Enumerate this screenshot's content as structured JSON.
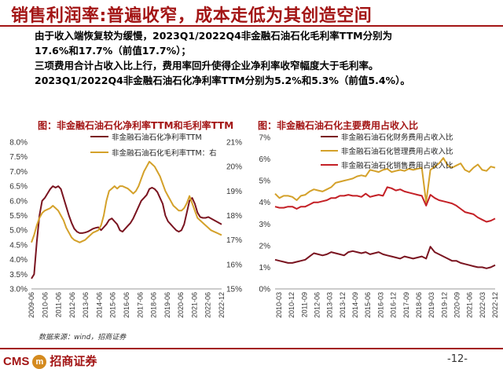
{
  "header": {
    "title": "销售利润率:普遍收窄，成本走低为其创造空间",
    "para1_line1": "由于收入端恢复较为缓慢，2023Q1/2022Q4非金融石油石化毛利率TTM分别为",
    "para1_line2": "17.6%和17.7%（前值17.7%）；",
    "para2_line1": "三项费用合计占收入比上行，费用率回升使得企业净利率收窄幅度大于毛利率。",
    "para2_line2": "2023Q1/2022Q4非金融石油石化净利率TTM分别为5.2%和5.3%（前值5.4%）。"
  },
  "footer": {
    "source": "数据来源：wind，招商证券",
    "logo_text": "CMS",
    "logo_mark": "m",
    "logo_cn": "招商证券",
    "page_number": "-12-"
  },
  "colors": {
    "dark_red": "#7a1420",
    "gold": "#d4a12a",
    "red": "#c42026",
    "accent": "#a31515"
  },
  "chart_data": [
    {
      "type": "line",
      "title": "图：非金融石油石化净利率TTM和毛利率TTM",
      "x_tick_labels": [
        "2009-06",
        "2010-06",
        "2011-06",
        "2012-06",
        "2013-06",
        "2014-06",
        "2015-06",
        "2016-06",
        "2017-06",
        "2018-06",
        "2019-06",
        "2020-06",
        "2021-06",
        "2022-06",
        "2022-12"
      ],
      "ylim_left": [
        3.0,
        8.0
      ],
      "y_ticks_left": [
        "3.0%",
        "3.5%",
        "4.0%",
        "4.5%",
        "5.0%",
        "5.5%",
        "6.0%",
        "6.5%",
        "7.0%",
        "7.5%",
        "8.0%"
      ],
      "ylim_right": [
        15,
        21
      ],
      "y_ticks_right": [
        "15%",
        "16%",
        "17%",
        "18%",
        "19%",
        "20%",
        "21%"
      ],
      "series": [
        {
          "name": "非金融石油石化净利率TTM",
          "axis": "left",
          "color": "#7a1420",
          "values": [
            3.35,
            3.5,
            4.6,
            5.5,
            6.0,
            6.1,
            6.25,
            6.4,
            6.5,
            6.45,
            6.5,
            6.4,
            6.1,
            5.8,
            5.5,
            5.25,
            5.05,
            4.95,
            4.9,
            4.9,
            4.92,
            4.95,
            5.0,
            5.05,
            5.08,
            5.1,
            5.0,
            5.1,
            5.2,
            5.35,
            5.4,
            5.3,
            5.2,
            5.0,
            4.95,
            5.05,
            5.15,
            5.25,
            5.4,
            5.6,
            5.8,
            6.0,
            6.1,
            6.2,
            6.4,
            6.45,
            6.4,
            6.3,
            6.1,
            5.9,
            5.5,
            5.3,
            5.2,
            5.1,
            5.0,
            4.95,
            5.0,
            5.2,
            5.6,
            6.0,
            6.1,
            5.9,
            5.6,
            5.45,
            5.42,
            5.42,
            5.45,
            5.4,
            5.35,
            5.3,
            5.25,
            5.2
          ]
        },
        {
          "name": "非金融石油石化毛利率TTM：右",
          "axis": "right",
          "color": "#d4a12a",
          "values": [
            16.9,
            17.2,
            17.6,
            17.9,
            18.1,
            18.2,
            18.25,
            18.3,
            18.4,
            18.3,
            18.2,
            18.0,
            17.8,
            17.5,
            17.3,
            17.1,
            17.0,
            16.95,
            16.9,
            16.95,
            17.0,
            17.1,
            17.2,
            17.3,
            17.35,
            17.4,
            17.6,
            18.0,
            18.6,
            19.0,
            19.1,
            19.2,
            19.1,
            19.2,
            19.2,
            19.15,
            19.1,
            19.0,
            18.9,
            19.0,
            19.2,
            19.5,
            19.8,
            20.0,
            20.2,
            20.1,
            20.0,
            19.8,
            19.6,
            19.3,
            19.0,
            18.8,
            18.6,
            18.4,
            18.3,
            18.2,
            18.2,
            18.3,
            18.5,
            18.8,
            18.5,
            18.2,
            17.9,
            17.8,
            17.7,
            17.6,
            17.5,
            17.4,
            17.35,
            17.3,
            17.25,
            17.2
          ]
        }
      ],
      "legend_position": "top-right"
    },
    {
      "type": "line",
      "title": "图：非金融石油石化主要费用占收入比",
      "x_tick_labels": [
        "2010-03",
        "2010-12",
        "2011-09",
        "2012-06",
        "2013-03",
        "2013-12",
        "2014-09",
        "2015-06",
        "2016-03",
        "2016-12",
        "2017-09",
        "2018-06",
        "2019-03",
        "2019-12",
        "2020-09",
        "2021-06",
        "2022-03",
        "2022-12"
      ],
      "ylim": [
        0,
        7
      ],
      "y_ticks": [
        "0%",
        "1%",
        "2%",
        "3%",
        "4%",
        "5%",
        "6%",
        "7%"
      ],
      "series": [
        {
          "name": "非金融石油石化财务费用占收入比",
          "color": "#7a1420",
          "values": [
            1.35,
            1.3,
            1.25,
            1.2,
            1.2,
            1.25,
            1.3,
            1.35,
            1.5,
            1.65,
            1.6,
            1.55,
            1.6,
            1.7,
            1.65,
            1.6,
            1.55,
            1.7,
            1.75,
            1.7,
            1.65,
            1.7,
            1.6,
            1.65,
            1.7,
            1.6,
            1.55,
            1.5,
            1.45,
            1.4,
            1.5,
            1.45,
            1.4,
            1.45,
            1.5,
            1.4,
            1.95,
            1.7,
            1.6,
            1.5,
            1.4,
            1.3,
            1.3,
            1.2,
            1.15,
            1.1,
            1.05,
            1.0,
            1.0,
            0.95,
            1.0,
            1.1
          ]
        },
        {
          "name": "非金融石油石化管理费用占收入比",
          "color": "#d4a12a",
          "values": [
            4.4,
            4.2,
            4.3,
            4.3,
            4.25,
            4.1,
            4.3,
            4.35,
            4.5,
            4.6,
            4.55,
            4.5,
            4.6,
            4.7,
            4.9,
            4.95,
            5.0,
            5.05,
            5.1,
            5.2,
            5.25,
            5.2,
            5.5,
            5.45,
            5.4,
            5.5,
            5.55,
            5.4,
            5.45,
            5.5,
            5.45,
            5.55,
            5.5,
            5.55,
            5.6,
            4.0,
            5.5,
            5.65,
            5.8,
            6.05,
            5.7,
            5.6,
            5.7,
            5.8,
            5.5,
            5.4,
            5.6,
            5.75,
            5.5,
            5.45,
            5.65,
            5.6
          ]
        },
        {
          "name": "非金融石油石化销售费用占收入比",
          "color": "#c42026",
          "values": [
            3.8,
            3.75,
            3.75,
            3.8,
            3.8,
            3.7,
            3.8,
            3.8,
            3.9,
            4.0,
            4.0,
            4.05,
            4.1,
            4.2,
            4.2,
            4.3,
            4.3,
            4.35,
            4.3,
            4.3,
            4.25,
            4.4,
            4.25,
            4.3,
            4.35,
            4.3,
            4.7,
            4.65,
            4.55,
            4.6,
            4.5,
            4.45,
            4.4,
            4.35,
            4.3,
            3.85,
            4.35,
            4.2,
            4.1,
            4.05,
            4.0,
            3.95,
            3.85,
            3.7,
            3.55,
            3.5,
            3.45,
            3.3,
            3.2,
            3.1,
            3.15,
            3.25
          ]
        }
      ],
      "legend_position": "top-right"
    }
  ]
}
